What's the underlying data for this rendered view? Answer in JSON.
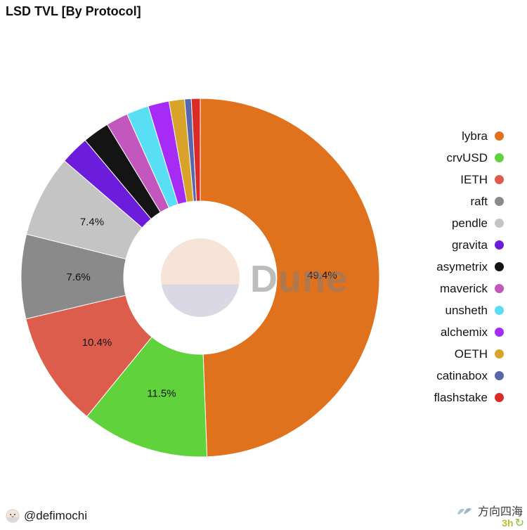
{
  "page": {
    "title": "LSD TVL [By Protocol]",
    "watermark": "Dune",
    "footer": {
      "handle": "@defimochi",
      "brand": "方向四海",
      "badge_time": "3h"
    }
  },
  "chart_data": {
    "type": "pie",
    "subtype": "donut",
    "title": "LSD TVL [By Protocol]",
    "unit": "%",
    "direction": "clockwise",
    "start_angle": "top",
    "legend_position": "right",
    "grid": false,
    "watermark": "Dune",
    "visible_slice_labels": [
      "49.4%",
      "11.5%",
      "10.4%",
      "7.6%",
      "7.4%"
    ],
    "series": [
      {
        "label": "lybra",
        "value": 49.4,
        "color": "#E0711D",
        "show_label": true
      },
      {
        "label": "crvUSD",
        "value": 11.5,
        "color": "#5FD23C",
        "show_label": true
      },
      {
        "label": "IETH",
        "value": 10.4,
        "color": "#DD5D4C",
        "show_label": true
      },
      {
        "label": "raft",
        "value": 7.6,
        "color": "#8A8A8A",
        "show_label": true
      },
      {
        "label": "pendle",
        "value": 7.4,
        "color": "#C4C4C4",
        "show_label": true
      },
      {
        "label": "gravita",
        "value": 2.6,
        "color": "#6C1DDB",
        "show_label": false
      },
      {
        "label": "asymetrix",
        "value": 2.4,
        "color": "#141414",
        "show_label": false
      },
      {
        "label": "maverick",
        "value": 2.0,
        "color": "#C257BE",
        "show_label": false
      },
      {
        "label": "unsheth",
        "value": 2.0,
        "color": "#59DFF5",
        "show_label": false
      },
      {
        "label": "alchemix",
        "value": 1.9,
        "color": "#A62BF5",
        "show_label": false
      },
      {
        "label": "OETH",
        "value": 1.4,
        "color": "#D9A32A",
        "show_label": false
      },
      {
        "label": "catinabox",
        "value": 0.6,
        "color": "#5767AE",
        "show_label": false
      },
      {
        "label": "flashstake",
        "value": 0.8,
        "color": "#DB2B28",
        "show_label": false
      }
    ]
  }
}
